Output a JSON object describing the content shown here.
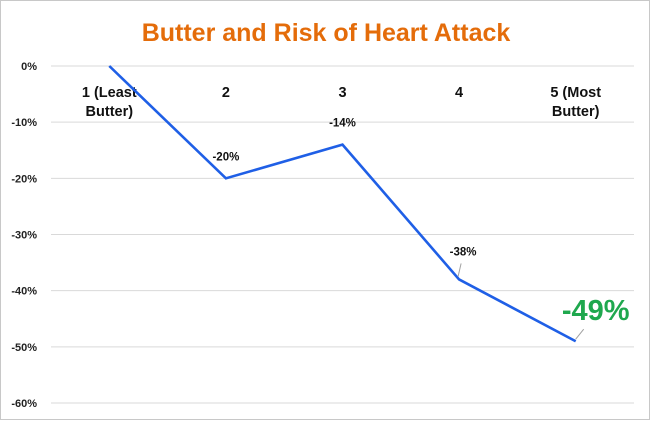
{
  "colors": {
    "title": "#E46C0A",
    "line": "#1F5FE6",
    "highlight": "#1FA84E",
    "grid": "#D9D9D9"
  },
  "chart_data": {
    "type": "line",
    "title": "Butter and Risk of Heart Attack",
    "xlabel": "",
    "ylabel": "",
    "categories": [
      "1 (Least Butter)",
      "2",
      "3",
      "4",
      "5 (Most Butter)"
    ],
    "category_lines": [
      [
        "1 (Least",
        "Butter)"
      ],
      [
        "2"
      ],
      [
        "3"
      ],
      [
        "4"
      ],
      [
        "5 (Most",
        "Butter)"
      ]
    ],
    "series": [
      {
        "values": [
          0,
          -20,
          -14,
          -38,
          -49
        ]
      }
    ],
    "data_labels": [
      "",
      "-20%",
      "-14%",
      "-38%",
      "-49%"
    ],
    "highlight_index": 4,
    "y_ticks": [
      0,
      -10,
      -20,
      -30,
      -40,
      -50,
      -60
    ],
    "y_tick_labels": [
      "0%",
      "-10%",
      "-20%",
      "-30%",
      "-40%",
      "-50%",
      "-60%"
    ],
    "ylim": [
      -60,
      0
    ],
    "grid": true,
    "legend": "none"
  }
}
